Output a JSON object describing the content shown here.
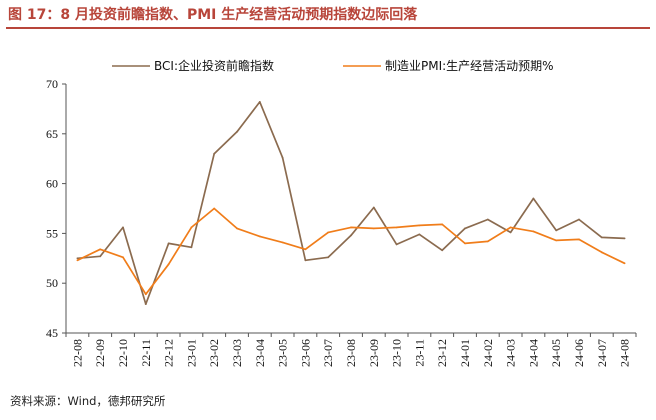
{
  "title": "图 17：8 月投资前瞻指数、PMI 生产经营活动预期指数边际回落",
  "source": "资料来源：Wind，德邦研究所",
  "colors": {
    "accent": "#b8453a",
    "series_bci": "#8b6b4f",
    "series_pmi": "#f07d1a",
    "axis": "#555555"
  },
  "chart_data": {
    "type": "line",
    "title": "图 17：8 月投资前瞻指数、PMI 生产经营活动预期指数边际回落",
    "xlabel": "",
    "ylabel": "",
    "ylim": [
      45,
      70
    ],
    "yticks": [
      45,
      50,
      55,
      60,
      65,
      70
    ],
    "legend_position": "top",
    "grid": false,
    "categories": [
      "22-08",
      "22-09",
      "22-10",
      "22-11",
      "22-12",
      "23-01",
      "23-02",
      "23-03",
      "23-04",
      "23-05",
      "23-06",
      "23-07",
      "23-08",
      "23-09",
      "23-10",
      "23-11",
      "23-12",
      "24-01",
      "24-02",
      "24-03",
      "24-04",
      "24-05",
      "24-06",
      "24-07",
      "24-08"
    ],
    "series": [
      {
        "name": "BCI:企业投资前瞻指数",
        "color": "#8b6b4f",
        "values": [
          52.5,
          52.7,
          55.6,
          47.9,
          54.0,
          53.6,
          63.0,
          65.2,
          68.2,
          62.6,
          52.3,
          52.6,
          54.8,
          57.6,
          53.9,
          54.9,
          53.3,
          55.5,
          56.4,
          55.1,
          58.5,
          55.3,
          56.4,
          54.6,
          54.5
        ]
      },
      {
        "name": "制造业PMI:生产经营活动预期%",
        "color": "#f07d1a",
        "values": [
          52.3,
          53.4,
          52.6,
          48.9,
          51.9,
          55.6,
          57.5,
          55.5,
          54.7,
          54.1,
          53.4,
          55.1,
          55.6,
          55.5,
          55.6,
          55.8,
          55.9,
          54.0,
          54.2,
          55.6,
          55.2,
          54.3,
          54.4,
          53.1,
          52.0
        ]
      }
    ]
  }
}
